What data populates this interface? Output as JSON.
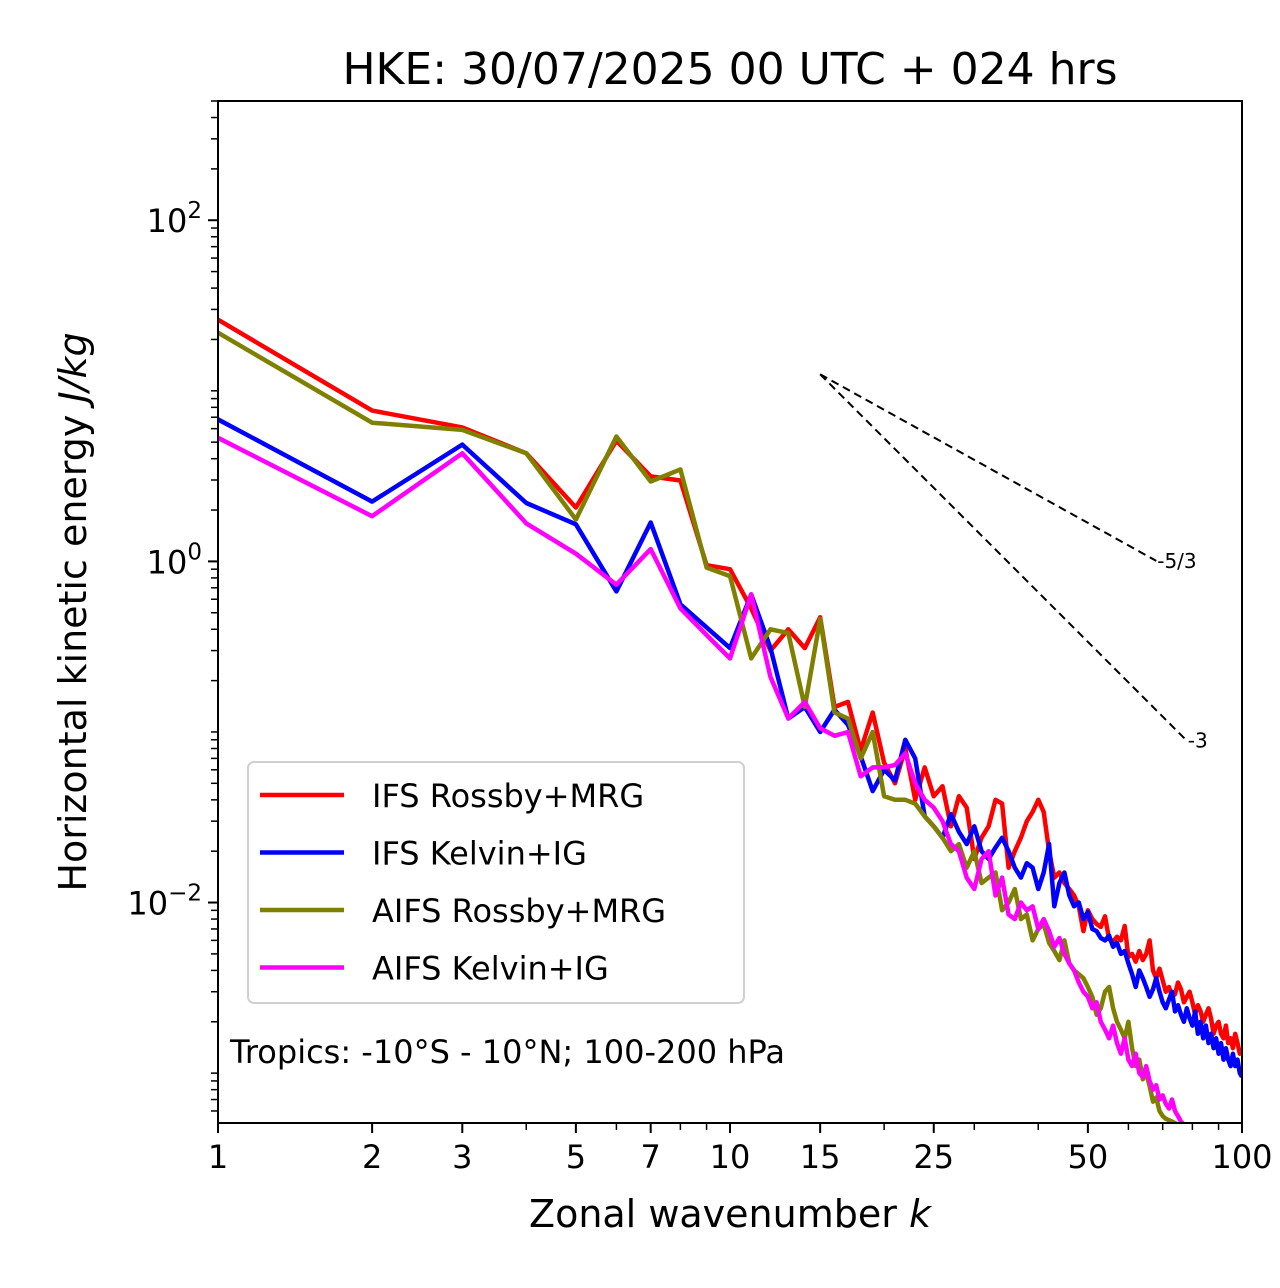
{
  "chart_data": {
    "type": "line",
    "title": "HKE: 30/07/2025 00 UTC + 024 hrs",
    "xlabel_prefix": "Zonal wavenumber ",
    "xlabel_var": "k",
    "ylabel_prefix": "Horizontal kinetic energy ",
    "ylabel_unit": "J/kg",
    "xscale": "log",
    "yscale": "log",
    "xlim": [
      1,
      100
    ],
    "ylim": [
      0.00051,
      500
    ],
    "grid": false,
    "legend_position": "lower-left",
    "x_ticks": [
      {
        "value": 1,
        "label": "1"
      },
      {
        "value": 2,
        "label": "2"
      },
      {
        "value": 3,
        "label": "3"
      },
      {
        "value": 5,
        "label": "5"
      },
      {
        "value": 7,
        "label": "7"
      },
      {
        "value": 10,
        "label": "10"
      },
      {
        "value": 15,
        "label": "15"
      },
      {
        "value": 25,
        "label": "25"
      },
      {
        "value": 50,
        "label": "50"
      },
      {
        "value": 100,
        "label": "100"
      }
    ],
    "y_ticks": [
      {
        "value": 100,
        "base": "10",
        "exp": "2"
      },
      {
        "value": 1,
        "base": "10",
        "exp": "0"
      },
      {
        "value": 0.01,
        "base": "10",
        "exp": "−2"
      }
    ],
    "annotation": "Tropics: -10°S - 10°N; 100-200 hPa",
    "reference_lines": [
      {
        "label": "-5/3",
        "slope": -1.6667,
        "x_start": 15,
        "y_start": 12.5,
        "x_end": 68
      },
      {
        "label": "-3",
        "slope": -3,
        "x_start": 15,
        "y_start": 12.5,
        "x_end": 78
      }
    ],
    "series": [
      {
        "name": "IFS Rossby+MRG",
        "color": "#ff0000",
        "values": [
          26.1,
          7.66,
          6.1,
          4.3,
          2.07,
          5.1,
          3.15,
          2.98,
          0.95,
          0.9,
          0.53,
          0.3,
          0.4,
          0.31,
          0.47,
          0.14,
          0.15,
          0.078,
          0.13,
          0.066,
          0.05,
          0.08,
          0.04,
          0.062,
          0.042,
          0.048,
          0.028,
          0.042,
          0.036,
          0.018,
          0.024,
          0.028,
          0.04,
          0.038,
          0.016,
          0.02,
          0.024,
          0.03,
          0.034,
          0.04,
          0.034,
          0.02,
          0.014,
          0.015,
          0.013,
          0.012,
          0.011,
          0.0095,
          0.0068,
          0.009,
          0.008,
          0.0075,
          0.0072,
          0.0083,
          0.0061,
          0.0059,
          0.0063,
          0.006,
          0.0073,
          0.0048,
          0.005,
          0.0045,
          0.0052,
          0.0046,
          0.005,
          0.006,
          0.004,
          0.0036,
          0.0041,
          0.0035,
          0.003,
          0.0032,
          0.0028,
          0.0029,
          0.0034,
          0.0031,
          0.0026,
          0.0028,
          0.003,
          0.0026,
          0.0022,
          0.0025,
          0.0023,
          0.002,
          0.0022,
          0.0024,
          0.0021,
          0.0017,
          0.0019,
          0.002,
          0.0017,
          0.0016,
          0.0019,
          0.0015,
          0.0016,
          0.0014,
          0.0017,
          0.0015,
          0.0013,
          0.0014
        ]
      },
      {
        "name": "IFS Kelvin+IG",
        "color": "#0000ff",
        "values": [
          6.8,
          2.24,
          4.84,
          2.2,
          1.65,
          0.667,
          1.69,
          0.56,
          0.41,
          0.31,
          0.64,
          0.31,
          0.12,
          0.14,
          0.1,
          0.135,
          0.11,
          0.072,
          0.045,
          0.06,
          0.052,
          0.09,
          0.07,
          0.032,
          0.028,
          0.024,
          0.033,
          0.026,
          0.022,
          0.028,
          0.02,
          0.018,
          0.021,
          0.024,
          0.02,
          0.016,
          0.014,
          0.017,
          0.016,
          0.012,
          0.015,
          0.022,
          0.0095,
          0.013,
          0.015,
          0.011,
          0.0095,
          0.01,
          0.008,
          0.0088,
          0.007,
          0.0068,
          0.0062,
          0.006,
          0.0064,
          0.0055,
          0.0058,
          0.005,
          0.0052,
          0.0044,
          0.0038,
          0.0032,
          0.004,
          0.0036,
          0.0032,
          0.0028,
          0.0031,
          0.0036,
          0.003,
          0.0026,
          0.0024,
          0.0027,
          0.003,
          0.0023,
          0.0025,
          0.0022,
          0.002,
          0.0024,
          0.0021,
          0.0019,
          0.0023,
          0.0017,
          0.002,
          0.0016,
          0.0019,
          0.0015,
          0.0017,
          0.0014,
          0.0016,
          0.0013,
          0.0015,
          0.0012,
          0.0014,
          0.0012,
          0.0011,
          0.0013,
          0.0011,
          0.0012,
          0.001,
          0.00095
        ]
      },
      {
        "name": "AIFS Rossby+MRG",
        "color": "#808000",
        "values": [
          21.9,
          6.5,
          5.9,
          4.3,
          1.76,
          5.4,
          2.94,
          3.46,
          0.92,
          0.82,
          0.27,
          0.4,
          0.38,
          0.14,
          0.46,
          0.13,
          0.12,
          0.07,
          0.1,
          0.042,
          0.04,
          0.04,
          0.038,
          0.032,
          0.028,
          0.024,
          0.02,
          0.022,
          0.016,
          0.02,
          0.013,
          0.014,
          0.015,
          0.009,
          0.01,
          0.012,
          0.008,
          0.0085,
          0.006,
          0.007,
          0.0075,
          0.0058,
          0.0052,
          0.0046,
          0.006,
          0.0044,
          0.004,
          0.0038,
          0.0036,
          0.0032,
          0.0028,
          0.0022,
          0.0024,
          0.003,
          0.0032,
          0.0024,
          0.002,
          0.0018,
          0.0016,
          0.002,
          0.0014,
          0.0011,
          0.0012,
          0.00092,
          0.001,
          0.00084,
          0.00068,
          0.00072,
          0.0006,
          0.00056,
          0.00054,
          0.00053,
          0.00052,
          0.00051,
          0.0005,
          0.00049,
          0.00048,
          0.00047,
          0.00046,
          0.00045,
          0.00044,
          0.00043,
          0.00042,
          0.00041,
          0.0004,
          0.00039,
          0.00038,
          0.00037,
          0.00036,
          0.00035,
          0.00034,
          0.00033,
          0.00032,
          0.00031,
          0.0003,
          0.00029,
          0.00028,
          0.00027,
          0.00026,
          0.00025
        ]
      },
      {
        "name": "AIFS Kelvin+IG",
        "color": "#ff00ff",
        "values": [
          5.3,
          1.84,
          4.3,
          1.67,
          1.11,
          0.73,
          1.18,
          0.53,
          0.37,
          0.27,
          0.64,
          0.21,
          0.12,
          0.15,
          0.105,
          0.095,
          0.1,
          0.055,
          0.062,
          0.062,
          0.064,
          0.075,
          0.05,
          0.04,
          0.036,
          0.03,
          0.022,
          0.02,
          0.014,
          0.012,
          0.018,
          0.02,
          0.011,
          0.014,
          0.0085,
          0.008,
          0.01,
          0.009,
          0.0095,
          0.007,
          0.008,
          0.0068,
          0.0055,
          0.0062,
          0.005,
          0.0044,
          0.004,
          0.0034,
          0.003,
          0.0028,
          0.0024,
          0.0026,
          0.002,
          0.0018,
          0.0016,
          0.0019,
          0.0015,
          0.0013,
          0.0016,
          0.0012,
          0.0011,
          0.0013,
          0.001,
          0.00095,
          0.0011,
          0.0009,
          0.0008,
          0.00085,
          0.0007,
          0.00074,
          0.00066,
          0.00062,
          0.0007,
          0.0006,
          0.00056,
          0.00052,
          0.0005,
          0.00048,
          0.00046,
          0.00044,
          0.00042,
          0.0004,
          0.00038,
          0.00036,
          0.00034,
          0.00032,
          0.0003,
          0.00028,
          0.00027,
          0.00026,
          0.00025,
          0.00024,
          0.00023,
          0.00022,
          0.00021,
          0.0002,
          0.00019,
          0.00018,
          0.00017,
          0.00016
        ]
      }
    ]
  }
}
